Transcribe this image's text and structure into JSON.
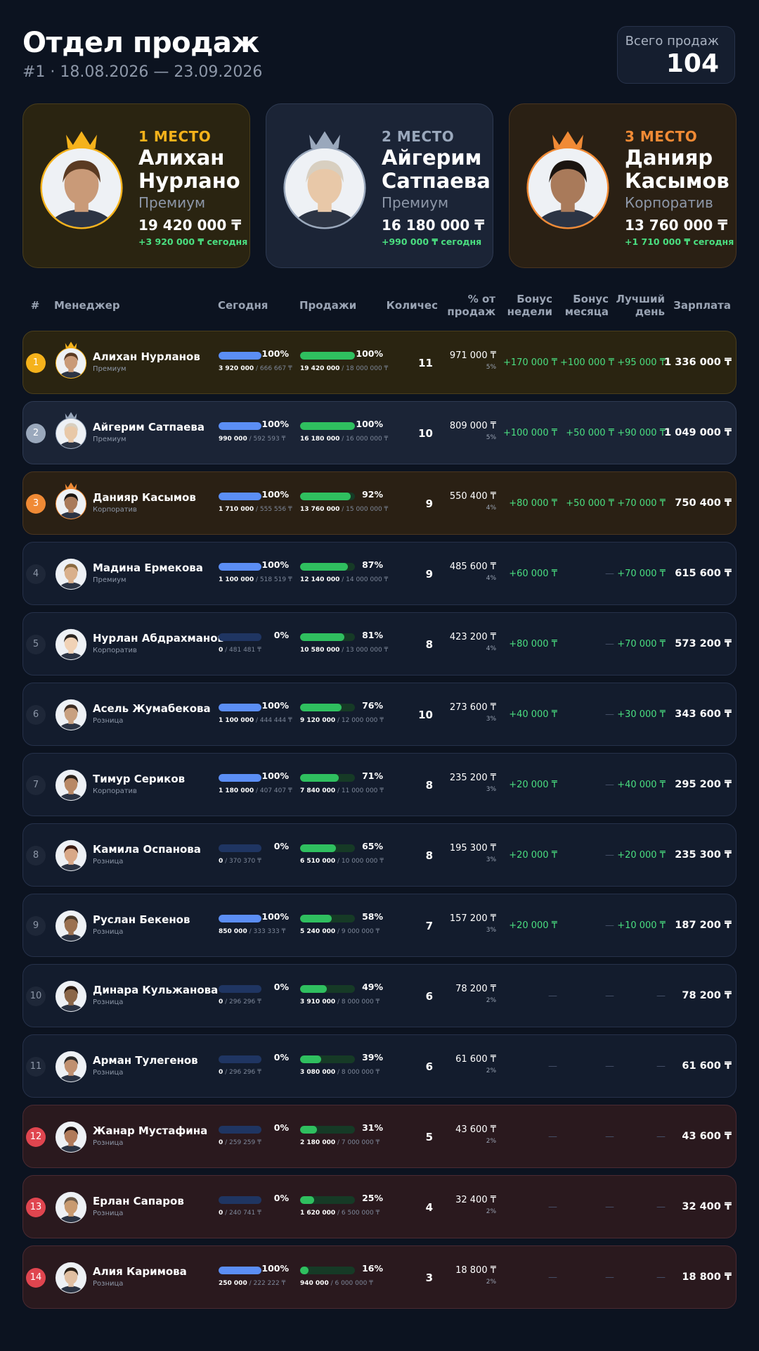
{
  "header": {
    "title": "Отдел продаж",
    "subtitle": "#1 · 18.08.2026 — 23.09.2026",
    "total_label": "Всего продаж",
    "total_value": "104"
  },
  "podium": [
    {
      "place": "1 МЕСТО",
      "name": "Алихан Нурлано",
      "tier": "Премиум",
      "sales": "19 420 000 ₸",
      "today": "+3 920 000 ₸ сегодня"
    },
    {
      "place": "2 МЕСТО",
      "name": "Айгерим Сатпаева",
      "tier": "Премиум",
      "sales": "16 180 000 ₸",
      "today": "+990 000 ₸ сегодня"
    },
    {
      "place": "3 МЕСТО",
      "name": "Данияр Касымов",
      "tier": "Корпоратив",
      "sales": "13 760 000 ₸",
      "today": "+1 710 000 ₸ сегодня"
    }
  ],
  "table": {
    "columns": [
      "#",
      "Менеджер",
      "Сегодня",
      "Продажи",
      "Количес",
      "% от продаж",
      "Бонус недели",
      "Бонус месяца",
      "Лучший день",
      "Зарплата"
    ],
    "rows": [
      {
        "rank": "1",
        "name": "Алихан Нурланов",
        "tier": "Премиум",
        "today_pct": "100%",
        "today_done": "3 920 000",
        "today_plan": "/ 666 667 ₸",
        "sales_pct": "100%",
        "sales_done": "19 420 000",
        "sales_plan": "/ 18 000 000 ₸",
        "count": "11",
        "share": "971 000 ₸",
        "share_pct": "5%",
        "bonus_week": "+170 000 ₸",
        "bonus_month": "+100 000 ₸",
        "best_day": "+95 000 ₸",
        "salary": "1 336 000 ₸"
      },
      {
        "rank": "2",
        "name": "Айгерим Сатпаева",
        "tier": "Премиум",
        "today_pct": "100%",
        "today_done": "990 000",
        "today_plan": "/ 592 593 ₸",
        "sales_pct": "100%",
        "sales_done": "16 180 000",
        "sales_plan": "/ 16 000 000 ₸",
        "count": "10",
        "share": "809 000 ₸",
        "share_pct": "5%",
        "bonus_week": "+100 000 ₸",
        "bonus_month": "+50 000 ₸",
        "best_day": "+90 000 ₸",
        "salary": "1 049 000 ₸"
      },
      {
        "rank": "3",
        "name": "Данияр Касымов",
        "tier": "Корпоратив",
        "today_pct": "100%",
        "today_done": "1 710 000",
        "today_plan": "/ 555 556 ₸",
        "sales_pct": "92%",
        "sales_done": "13 760 000",
        "sales_plan": "/ 15 000 000 ₸",
        "count": "9",
        "share": "550 400 ₸",
        "share_pct": "4%",
        "bonus_week": "+80 000 ₸",
        "bonus_month": "+50 000 ₸",
        "best_day": "+70 000 ₸",
        "salary": "750 400 ₸"
      },
      {
        "rank": "4",
        "name": "Мадина Ермекова",
        "tier": "Премиум",
        "today_pct": "100%",
        "today_done": "1 100 000",
        "today_plan": "/ 518 519 ₸",
        "sales_pct": "87%",
        "sales_done": "12 140 000",
        "sales_plan": "/ 14 000 000 ₸",
        "count": "9",
        "share": "485 600 ₸",
        "share_pct": "4%",
        "bonus_week": "+60 000 ₸",
        "bonus_month": "—",
        "best_day": "+70 000 ₸",
        "salary": "615 600 ₸"
      },
      {
        "rank": "5",
        "name": "Нурлан Абдрахманов",
        "tier": "Корпоратив",
        "today_pct": "0%",
        "today_done": "0",
        "today_plan": "/ 481 481 ₸",
        "sales_pct": "81%",
        "sales_done": "10 580 000",
        "sales_plan": "/ 13 000 000 ₸",
        "count": "8",
        "share": "423 200 ₸",
        "share_pct": "4%",
        "bonus_week": "+80 000 ₸",
        "bonus_month": "—",
        "best_day": "+70 000 ₸",
        "salary": "573 200 ₸"
      },
      {
        "rank": "6",
        "name": "Асель Жумабекова",
        "tier": "Розница",
        "today_pct": "100%",
        "today_done": "1 100 000",
        "today_plan": "/ 444 444 ₸",
        "sales_pct": "76%",
        "sales_done": "9 120 000",
        "sales_plan": "/ 12 000 000 ₸",
        "count": "10",
        "share": "273 600 ₸",
        "share_pct": "3%",
        "bonus_week": "+40 000 ₸",
        "bonus_month": "—",
        "best_day": "+30 000 ₸",
        "salary": "343 600 ₸"
      },
      {
        "rank": "7",
        "name": "Тимур Сериков",
        "tier": "Корпоратив",
        "today_pct": "100%",
        "today_done": "1 180 000",
        "today_plan": "/ 407 407 ₸",
        "sales_pct": "71%",
        "sales_done": "7 840 000",
        "sales_plan": "/ 11 000 000 ₸",
        "count": "8",
        "share": "235 200 ₸",
        "share_pct": "3%",
        "bonus_week": "+20 000 ₸",
        "bonus_month": "—",
        "best_day": "+40 000 ₸",
        "salary": "295 200 ₸"
      },
      {
        "rank": "8",
        "name": "Камила Оспанова",
        "tier": "Розница",
        "today_pct": "0%",
        "today_done": "0",
        "today_plan": "/ 370 370 ₸",
        "sales_pct": "65%",
        "sales_done": "6 510 000",
        "sales_plan": "/ 10 000 000 ₸",
        "count": "8",
        "share": "195 300 ₸",
        "share_pct": "3%",
        "bonus_week": "+20 000 ₸",
        "bonus_month": "—",
        "best_day": "+20 000 ₸",
        "salary": "235 300 ₸"
      },
      {
        "rank": "9",
        "name": "Руслан Бекенов",
        "tier": "Розница",
        "today_pct": "100%",
        "today_done": "850 000",
        "today_plan": "/ 333 333 ₸",
        "sales_pct": "58%",
        "sales_done": "5 240 000",
        "sales_plan": "/ 9 000 000 ₸",
        "count": "7",
        "share": "157 200 ₸",
        "share_pct": "3%",
        "bonus_week": "+20 000 ₸",
        "bonus_month": "—",
        "best_day": "+10 000 ₸",
        "salary": "187 200 ₸"
      },
      {
        "rank": "10",
        "name": "Динара Кульжанова",
        "tier": "Розница",
        "today_pct": "0%",
        "today_done": "0",
        "today_plan": "/ 296 296 ₸",
        "sales_pct": "49%",
        "sales_done": "3 910 000",
        "sales_plan": "/ 8 000 000 ₸",
        "count": "6",
        "share": "78 200 ₸",
        "share_pct": "2%",
        "bonus_week": "—",
        "bonus_month": "—",
        "best_day": "—",
        "salary": "78 200 ₸"
      },
      {
        "rank": "11",
        "name": "Арман Тулегенов",
        "tier": "Розница",
        "today_pct": "0%",
        "today_done": "0",
        "today_plan": "/ 296 296 ₸",
        "sales_pct": "39%",
        "sales_done": "3 080 000",
        "sales_plan": "/ 8 000 000 ₸",
        "count": "6",
        "share": "61 600 ₸",
        "share_pct": "2%",
        "bonus_week": "—",
        "bonus_month": "—",
        "best_day": "—",
        "salary": "61 600 ₸"
      },
      {
        "rank": "12",
        "name": "Жанар Мустафина",
        "tier": "Розница",
        "today_pct": "0%",
        "today_done": "0",
        "today_plan": "/ 259 259 ₸",
        "sales_pct": "31%",
        "sales_done": "2 180 000",
        "sales_plan": "/ 7 000 000 ₸",
        "count": "5",
        "share": "43 600 ₸",
        "share_pct": "2%",
        "bonus_week": "—",
        "bonus_month": "—",
        "best_day": "—",
        "salary": "43 600 ₸"
      },
      {
        "rank": "13",
        "name": "Ерлан Сапаров",
        "tier": "Розница",
        "today_pct": "0%",
        "today_done": "0",
        "today_plan": "/ 240 741 ₸",
        "sales_pct": "25%",
        "sales_done": "1 620 000",
        "sales_plan": "/ 6 500 000 ₸",
        "count": "4",
        "share": "32 400 ₸",
        "share_pct": "2%",
        "bonus_week": "—",
        "bonus_month": "—",
        "best_day": "—",
        "salary": "32 400 ₸"
      },
      {
        "rank": "14",
        "name": "Алия Каримова",
        "tier": "Розница",
        "today_pct": "100%",
        "today_done": "250 000",
        "today_plan": "/ 222 222 ₸",
        "sales_pct": "16%",
        "sales_done": "940 000",
        "sales_plan": "/ 6 000 000 ₸",
        "count": "3",
        "share": "18 800 ₸",
        "share_pct": "2%",
        "bonus_week": "—",
        "bonus_month": "—",
        "best_day": "—",
        "salary": "18 800 ₸"
      }
    ]
  }
}
